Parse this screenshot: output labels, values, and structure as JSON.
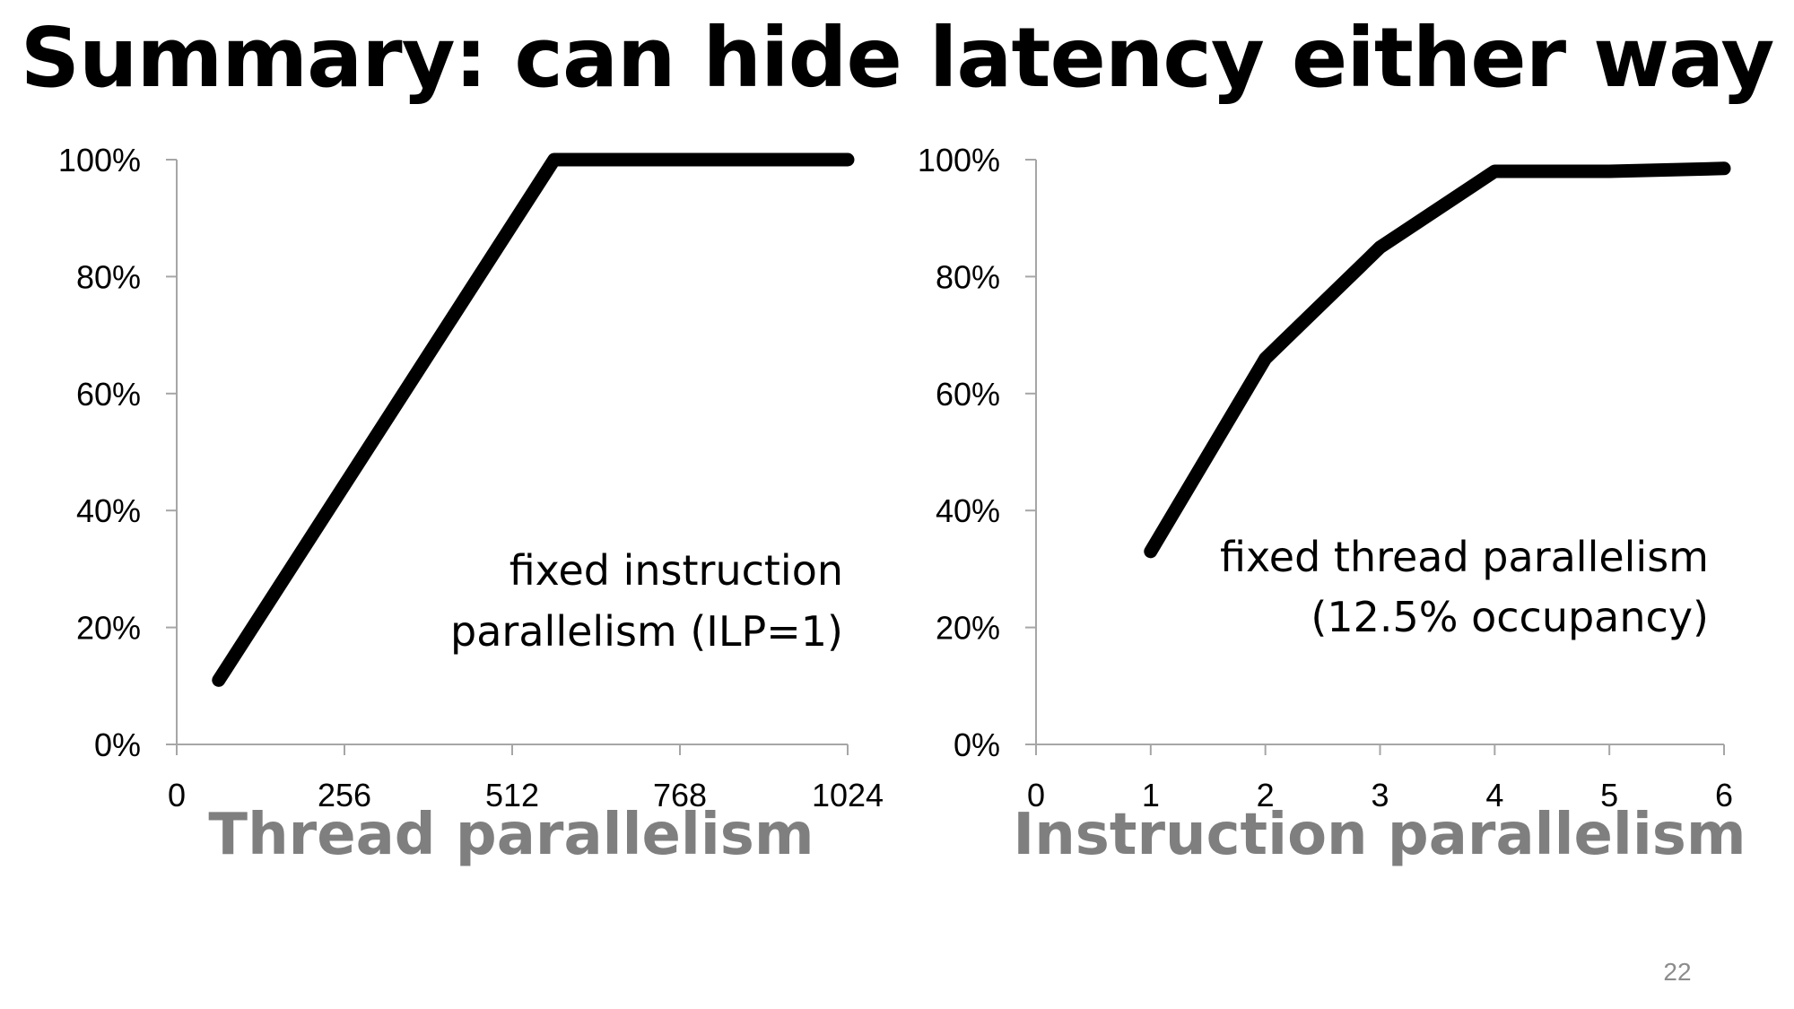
{
  "slide": {
    "title": "Summary: can hide latency either way",
    "page_number": "22"
  },
  "colors": {
    "line": "#000000",
    "axis": "#a6a6a6",
    "tick_label": "#000000",
    "xlabel": "#7f7f7f",
    "page_number": "#8c8c8c"
  },
  "chart_data": [
    {
      "type": "line",
      "title": "",
      "xlabel": "Thread parallelism",
      "ylabel": "",
      "xlim": [
        0,
        1024
      ],
      "ylim": [
        0,
        100
      ],
      "xticks": [
        0,
        256,
        512,
        768,
        1024
      ],
      "xtick_labels": [
        "0",
        "256",
        "512",
        "768",
        "1024"
      ],
      "yticks": [
        0,
        20,
        40,
        60,
        80,
        100
      ],
      "ytick_labels": [
        "0%",
        "20%",
        "40%",
        "60%",
        "80%",
        "100%"
      ],
      "grid": false,
      "legend": "none",
      "annotation": [
        "fixed instruction",
        "parallelism (ILP=1)"
      ],
      "series": [
        {
          "x": [
            64,
            576,
            1024
          ],
          "y": [
            11,
            100,
            100
          ]
        }
      ]
    },
    {
      "type": "line",
      "title": "",
      "xlabel": "Instruction parallelism",
      "ylabel": "",
      "xlim": [
        0,
        6
      ],
      "ylim": [
        0,
        100
      ],
      "xticks": [
        0,
        1,
        2,
        3,
        4,
        5,
        6
      ],
      "xtick_labels": [
        "0",
        "1",
        "2",
        "3",
        "4",
        "5",
        "6"
      ],
      "yticks": [
        0,
        20,
        40,
        60,
        80,
        100
      ],
      "ytick_labels": [
        "0%",
        "20%",
        "40%",
        "60%",
        "80%",
        "100%"
      ],
      "grid": false,
      "legend": "none",
      "annotation": [
        "fixed thread parallelism",
        "(12.5% occupancy)"
      ],
      "series": [
        {
          "x": [
            1,
            2,
            3,
            4,
            5,
            6
          ],
          "y": [
            33,
            66,
            85,
            98,
            98,
            98.5
          ]
        }
      ]
    }
  ]
}
